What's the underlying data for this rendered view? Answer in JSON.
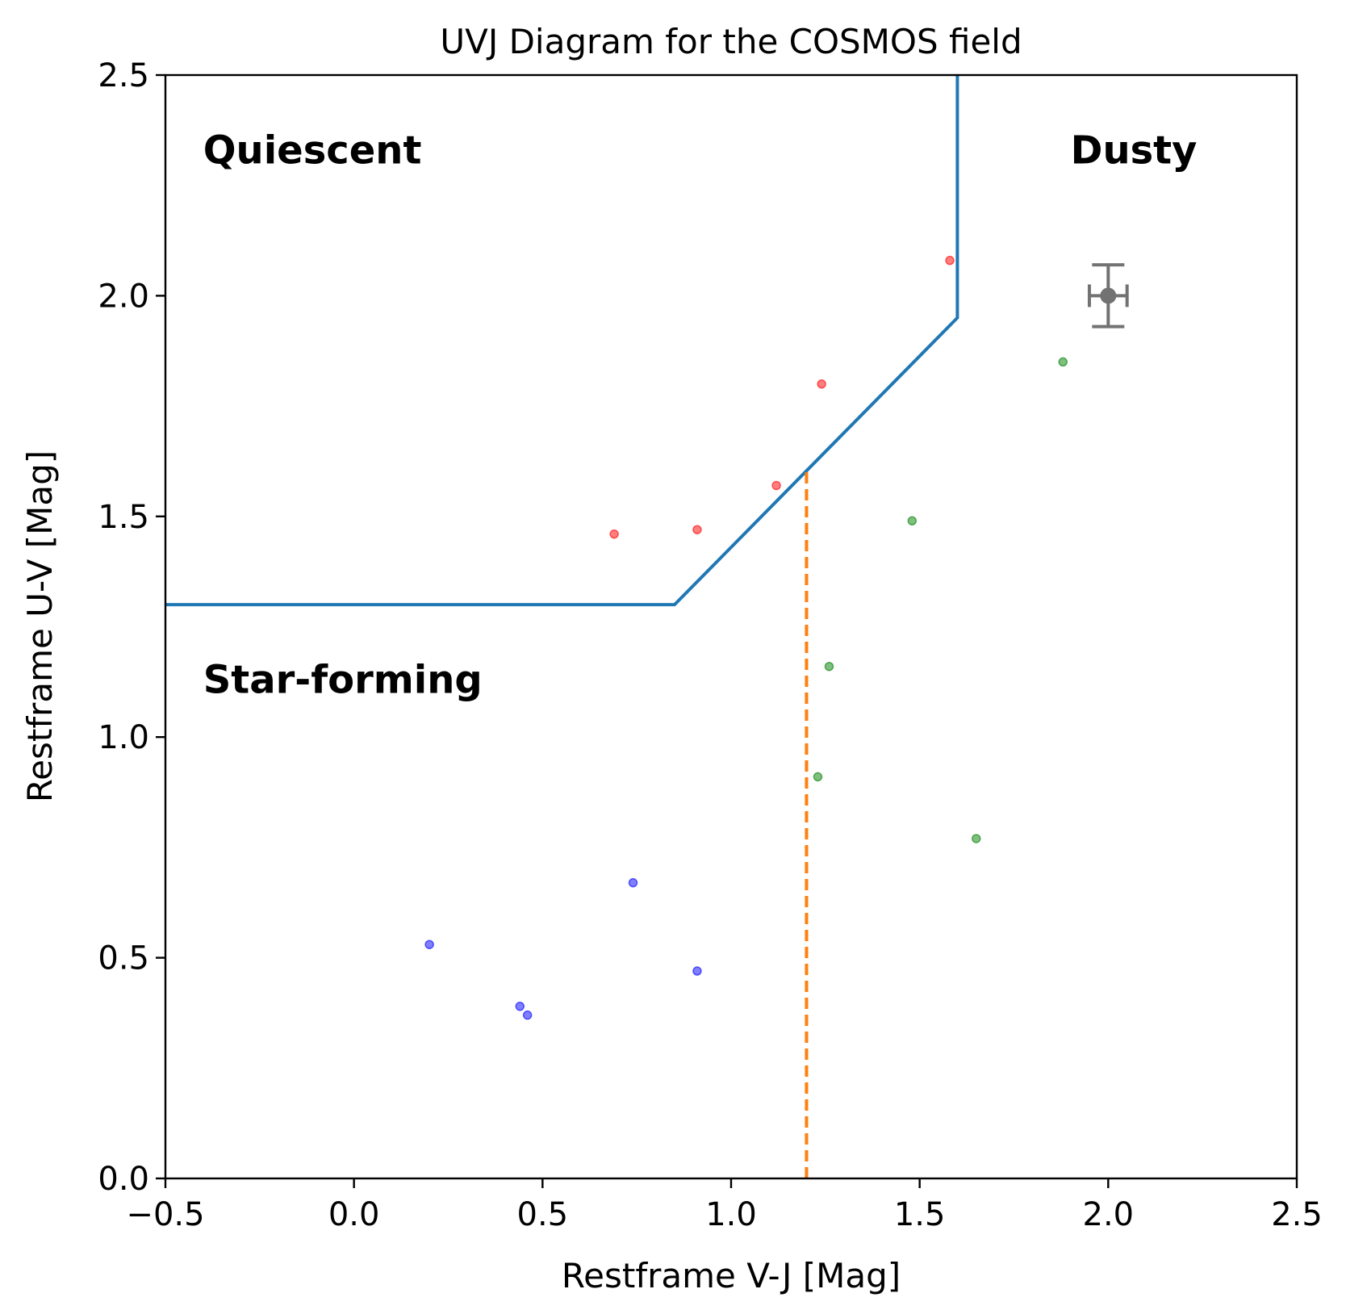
{
  "chart_data": {
    "type": "scatter",
    "title": "UVJ Diagram for the COSMOS field",
    "xlabel": "Restframe V-J [Mag]",
    "ylabel": "Restframe U-V [Mag]",
    "xlim": [
      -0.5,
      2.5
    ],
    "ylim": [
      0.0,
      2.5
    ],
    "xticks": [
      -0.5,
      0.0,
      0.5,
      1.0,
      1.5,
      2.0,
      2.5
    ],
    "xtick_labels": [
      "−0.5",
      "0.0",
      "0.5",
      "1.0",
      "1.5",
      "2.0",
      "2.5"
    ],
    "yticks": [
      0.0,
      0.5,
      1.0,
      1.5,
      2.0,
      2.5
    ],
    "ytick_labels": [
      "0.0",
      "0.5",
      "1.0",
      "1.5",
      "2.0",
      "2.5"
    ],
    "grid": false,
    "legend": false,
    "series": [
      {
        "color": "#ff0000",
        "points": [
          {
            "x": 0.69,
            "y": 1.46
          },
          {
            "x": 0.91,
            "y": 1.47
          },
          {
            "x": 1.12,
            "y": 1.57
          },
          {
            "x": 1.24,
            "y": 1.8
          },
          {
            "x": 1.58,
            "y": 2.08
          }
        ]
      },
      {
        "color": "#0000ff",
        "points": [
          {
            "x": 0.2,
            "y": 0.53
          },
          {
            "x": 0.44,
            "y": 0.39
          },
          {
            "x": 0.46,
            "y": 0.37
          },
          {
            "x": 0.74,
            "y": 0.67
          },
          {
            "x": 0.91,
            "y": 0.47
          }
        ]
      },
      {
        "color": "#008000",
        "points": [
          {
            "x": 1.23,
            "y": 0.91
          },
          {
            "x": 1.26,
            "y": 1.16
          },
          {
            "x": 1.48,
            "y": 1.49
          },
          {
            "x": 1.65,
            "y": 0.77
          },
          {
            "x": 1.88,
            "y": 1.85
          }
        ]
      }
    ],
    "boundary_line": {
      "color": "#1f77b4",
      "points": [
        [
          -0.5,
          1.3
        ],
        [
          0.85,
          1.3
        ],
        [
          1.6,
          1.95
        ],
        [
          1.6,
          2.5
        ]
      ]
    },
    "dashed_line": {
      "color": "#ff7f0e",
      "points": [
        [
          1.2,
          0.0
        ],
        [
          1.2,
          1.6
        ]
      ]
    },
    "error_point": {
      "color": "#000000",
      "x": 2.0,
      "y": 2.0,
      "xerr": 0.05,
      "yerr": 0.07
    },
    "annotations": [
      {
        "text": "Quiescent",
        "x": -0.4,
        "y": 2.3
      },
      {
        "text": "Dusty",
        "x": 1.9,
        "y": 2.3
      },
      {
        "text": "Star-forming",
        "x": -0.4,
        "y": 1.1
      }
    ]
  }
}
